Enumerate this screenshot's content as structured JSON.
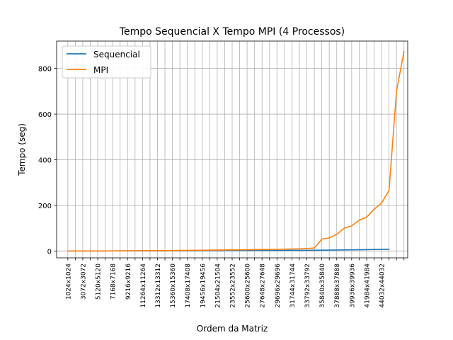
{
  "chart_data": {
    "type": "line",
    "title": "Tempo Sequencial X Tempo MPI (4 Processos)",
    "xlabel": "Ordem da Matriz",
    "ylabel": "Tempo (seg)",
    "ylim": [
      -30,
      920
    ],
    "yticks": [
      0,
      200,
      400,
      600,
      800
    ],
    "grid": true,
    "legend_position": "upper-left",
    "x_labels": [
      "1024x1024",
      "3072x3072",
      "5120x5120",
      "7168x7168",
      "9216x9216",
      "11264x11264",
      "13312x13312",
      "15360x15360",
      "17408x17408",
      "19456x19456",
      "21504x21504",
      "23552x23552",
      "25600x25600",
      "27648x27648",
      "29696x29696",
      "31744x31744",
      "33792x33792",
      "35840x35840",
      "37888x37888",
      "39936x39936",
      "41984x41984",
      "44032x44032"
    ],
    "x_index_range": [
      -1.5,
      45.5
    ],
    "series": [
      {
        "name": "Sequencial",
        "color": "#1f77b4",
        "values": [
          0,
          0,
          0,
          0.1,
          0.1,
          0.2,
          0.3,
          0.4,
          0.5,
          0.6,
          0.7,
          0.8,
          0.9,
          1.0,
          1.1,
          1.2,
          1.3,
          1.4,
          1.5,
          1.6,
          1.7,
          1.8,
          1.9,
          2.0,
          2.1,
          2.2,
          2.3,
          2.4,
          2.5,
          2.6,
          2.7,
          2.8,
          3.0,
          3.3,
          3.6,
          4.0,
          4.4,
          4.8,
          5.2,
          5.6,
          6.0,
          6.5,
          7.0,
          7.5
        ]
      },
      {
        "name": "MPI",
        "color": "#ff7f0e",
        "values": [
          0,
          0,
          0,
          0.1,
          0.2,
          0.3,
          0.4,
          0.6,
          0.8,
          1.0,
          1.2,
          1.4,
          1.6,
          1.8,
          2.1,
          2.4,
          2.7,
          3.0,
          3.3,
          3.6,
          3.9,
          4.2,
          4.6,
          5.0,
          5.4,
          5.8,
          6.3,
          6.8,
          7.3,
          7.8,
          8.5,
          9.5,
          11,
          13,
          52,
          57,
          73,
          100,
          110,
          135,
          148,
          183,
          210,
          265,
          700,
          875
        ]
      }
    ]
  }
}
